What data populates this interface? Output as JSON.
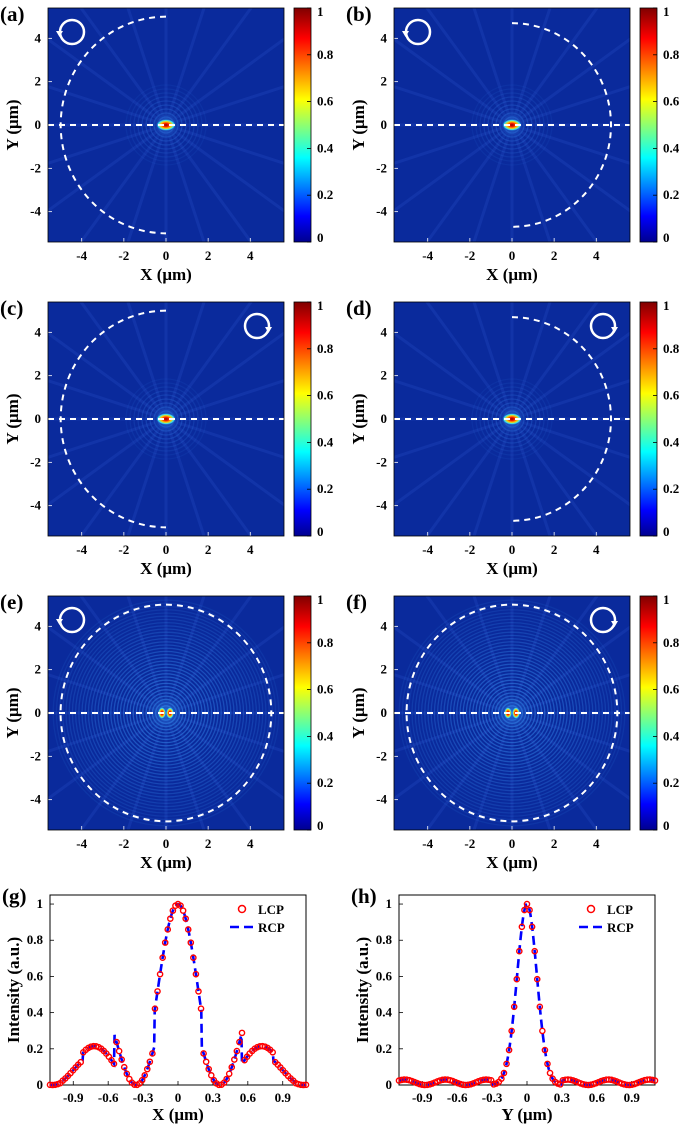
{
  "colors": {
    "field_background": "#0a2a9c",
    "overlay_line": "#ffffff",
    "lcp_marker": "#ff0000",
    "rcp_line": "#0000ff"
  },
  "colorbar": {
    "ticks": [
      "0",
      "0.2",
      "0.4",
      "0.6",
      "0.8",
      "1"
    ],
    "colormap": "jet"
  },
  "chart_data": [
    {
      "panel": "(a)",
      "type": "heatmap",
      "xlabel": "X (μm)",
      "ylabel": "Y (μm)",
      "xlim": [
        -5.6,
        5.6
      ],
      "ylim": [
        -5.4,
        5.4
      ],
      "xticks": [
        -4,
        -2,
        0,
        2,
        4
      ],
      "yticks": [
        -4,
        -2,
        0,
        2,
        4
      ],
      "clim": [
        0,
        1
      ],
      "overlay": {
        "dashed_arc": "left",
        "arc_radius": 5.0,
        "horizontal_dashed_line_y": 0
      },
      "circular_arrow": {
        "corner": "top-left",
        "sense": "counterclockwise"
      },
      "focus": {
        "x": 0,
        "y": 0,
        "peak": 1.0
      },
      "pattern": "off-axis focus with faint fringes"
    },
    {
      "panel": "(b)",
      "type": "heatmap",
      "xlabel": "X (μm)",
      "ylabel": "Y (μm)",
      "xlim": [
        -5.6,
        5.6
      ],
      "ylim": [
        -5.4,
        5.4
      ],
      "xticks": [
        -4,
        -2,
        0,
        2,
        4
      ],
      "yticks": [
        -4,
        -2,
        0,
        2,
        4
      ],
      "clim": [
        0,
        1
      ],
      "overlay": {
        "dashed_arc": "right",
        "arc_radius": 4.7,
        "horizontal_dashed_line_y": 0
      },
      "circular_arrow": {
        "corner": "top-left",
        "sense": "counterclockwise"
      },
      "focus": {
        "x": 0,
        "y": 0,
        "peak": 1.0
      },
      "pattern": "off-axis focus with faint fringes"
    },
    {
      "panel": "(c)",
      "type": "heatmap",
      "xlabel": "X (μm)",
      "ylabel": "Y (μm)",
      "xlim": [
        -5.6,
        5.6
      ],
      "ylim": [
        -5.4,
        5.4
      ],
      "xticks": [
        -4,
        -2,
        0,
        2,
        4
      ],
      "yticks": [
        -4,
        -2,
        0,
        2,
        4
      ],
      "clim": [
        0,
        1
      ],
      "overlay": {
        "dashed_arc": "left",
        "arc_radius": 5.0,
        "horizontal_dashed_line_y": 0
      },
      "circular_arrow": {
        "corner": "top-right",
        "sense": "clockwise"
      },
      "focus": {
        "x": 0,
        "y": 0,
        "peak": 1.0
      },
      "pattern": "off-axis focus with faint fringes"
    },
    {
      "panel": "(d)",
      "type": "heatmap",
      "xlabel": "X (μm)",
      "ylabel": "Y (μm)",
      "xlim": [
        -5.6,
        5.6
      ],
      "ylim": [
        -5.4,
        5.4
      ],
      "xticks": [
        -4,
        -2,
        0,
        2,
        4
      ],
      "yticks": [
        -4,
        -2,
        0,
        2,
        4
      ],
      "clim": [
        0,
        1
      ],
      "overlay": {
        "dashed_arc": "right",
        "arc_radius": 4.7,
        "horizontal_dashed_line_y": 0
      },
      "circular_arrow": {
        "corner": "top-right",
        "sense": "clockwise"
      },
      "focus": {
        "x": 0,
        "y": 0,
        "peak": 1.0
      },
      "pattern": "off-axis focus with faint fringes"
    },
    {
      "panel": "(e)",
      "type": "heatmap",
      "xlabel": "X (μm)",
      "ylabel": "Y (μm)",
      "xlim": [
        -5.6,
        5.6
      ],
      "ylim": [
        -5.4,
        5.4
      ],
      "xticks": [
        -4,
        -2,
        0,
        2,
        4
      ],
      "yticks": [
        -4,
        -2,
        0,
        2,
        4
      ],
      "clim": [
        0,
        1
      ],
      "overlay": {
        "dashed_arc": "full",
        "arc_radius": 5.0,
        "horizontal_dashed_line_y": 0
      },
      "circular_arrow": {
        "corner": "top-left",
        "sense": "counterclockwise"
      },
      "focus": {
        "x": 0,
        "y": 0,
        "peak": 1.0
      },
      "pattern": "concentric rings with split central spot"
    },
    {
      "panel": "(f)",
      "type": "heatmap",
      "xlabel": "X (μm)",
      "ylabel": "Y (μm)",
      "xlim": [
        -5.6,
        5.6
      ],
      "ylim": [
        -5.4,
        5.4
      ],
      "xticks": [
        -4,
        -2,
        0,
        2,
        4
      ],
      "yticks": [
        -4,
        -2,
        0,
        2,
        4
      ],
      "clim": [
        0,
        1
      ],
      "overlay": {
        "dashed_arc": "full",
        "arc_radius": 5.0,
        "horizontal_dashed_line_y": 0
      },
      "circular_arrow": {
        "corner": "top-right",
        "sense": "clockwise"
      },
      "focus": {
        "x": 0,
        "y": 0,
        "peak": 1.0
      },
      "pattern": "concentric rings with split central spot"
    },
    {
      "panel": "(g)",
      "type": "line",
      "xlabel": "X (μm)",
      "ylabel": "Intensity (a.u.)",
      "xlim": [
        -1.1,
        1.1
      ],
      "ylim": [
        0,
        1.05
      ],
      "xticks": [
        "-0.9",
        "-0.6",
        "-0.3",
        "0",
        "0.3",
        "0.6",
        "0.9"
      ],
      "yticks": [
        "0",
        "0.2",
        "0.4",
        "0.6",
        "0.8",
        "1"
      ],
      "legend_position": "top-right",
      "series": [
        {
          "name": "LCP",
          "style": "circles",
          "peaks_x": [
            -1.02,
            -0.88,
            -0.7,
            -0.36,
            0,
            0.36,
            0.7,
            0.95
          ],
          "peaks_y": [
            0.12,
            0.17,
            0.21,
            0.53,
            1.0,
            0.53,
            0.22,
            0.17
          ]
        },
        {
          "name": "RCP",
          "style": "dashed",
          "peaks_x": [
            -1.02,
            -0.88,
            -0.7,
            -0.36,
            0,
            0.36,
            0.7,
            0.95
          ],
          "peaks_y": [
            0.12,
            0.17,
            0.21,
            0.53,
            1.0,
            0.53,
            0.22,
            0.17
          ]
        }
      ]
    },
    {
      "panel": "(h)",
      "type": "line",
      "xlabel": "Y (μm)",
      "ylabel": "Intensity (a.u.)",
      "xlim": [
        -1.1,
        1.1
      ],
      "ylim": [
        0,
        1.05
      ],
      "xticks": [
        "-0.9",
        "-0.6",
        "-0.3",
        "0",
        "0.3",
        "0.6",
        "0.9"
      ],
      "yticks": [
        "0",
        "0.2",
        "0.4",
        "0.6",
        "0.8",
        "1"
      ],
      "legend_position": "top-right",
      "series": [
        {
          "name": "LCP",
          "style": "circles",
          "peak_x": 0,
          "peak_y": 1.0,
          "fwhm": 0.2,
          "sidelobe_y": 0.03
        },
        {
          "name": "RCP",
          "style": "dashed",
          "peak_x": 0,
          "peak_y": 1.0,
          "fwhm": 0.2,
          "sidelobe_y": 0.03
        }
      ]
    }
  ]
}
